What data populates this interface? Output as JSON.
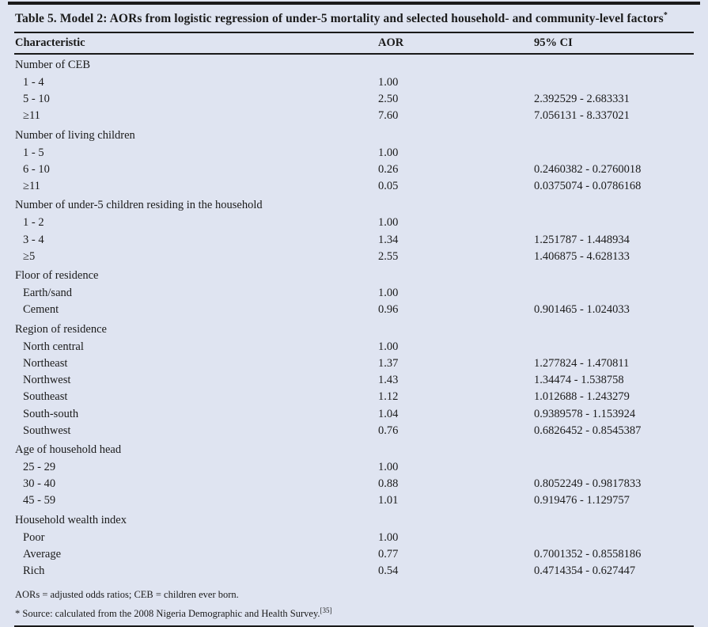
{
  "table": {
    "title": "Table 5. Model 2:  AORs from logistic regression of under-5 mortality and selected household- and community-level factors",
    "title_marker": "*",
    "columns": {
      "characteristic": "Characteristic",
      "aor": "AOR",
      "ci": "95% CI"
    },
    "sections": [
      {
        "header": "Number of CEB",
        "rows": [
          {
            "label": "1 - 4",
            "aor": "1.00",
            "ci": ""
          },
          {
            "label": "5 - 10",
            "aor": "2.50",
            "ci": "2.392529 - 2.683331"
          },
          {
            "label": "≥11",
            "aor": "7.60",
            "ci": "7.056131 - 8.337021"
          }
        ]
      },
      {
        "header": "Number of living children",
        "rows": [
          {
            "label": "1 - 5",
            "aor": "1.00",
            "ci": ""
          },
          {
            "label": "6 - 10",
            "aor": "0.26",
            "ci": "0.2460382 - 0.2760018"
          },
          {
            "label": "≥11",
            "aor": "0.05",
            "ci": "0.0375074 - 0.0786168"
          }
        ]
      },
      {
        "header": "Number of under-5 children residing in the household",
        "rows": [
          {
            "label": "1 - 2",
            "aor": "1.00",
            "ci": ""
          },
          {
            "label": "3 - 4",
            "aor": "1.34",
            "ci": "1.251787 - 1.448934"
          },
          {
            "label": "≥5",
            "aor": "2.55",
            "ci": "1.406875 - 4.628133"
          }
        ]
      },
      {
        "header": "Floor of residence",
        "rows": [
          {
            "label": "Earth/sand",
            "aor": "1.00",
            "ci": ""
          },
          {
            "label": "Cement",
            "aor": "0.96",
            "ci": "0.901465 - 1.024033"
          }
        ]
      },
      {
        "header": "Region of residence",
        "rows": [
          {
            "label": "North central",
            "aor": "1.00",
            "ci": ""
          },
          {
            "label": "Northeast",
            "aor": "1.37",
            "ci": "1.277824 - 1.470811"
          },
          {
            "label": "Northwest",
            "aor": "1.43",
            "ci": "1.34474 - 1.538758"
          },
          {
            "label": "Southeast",
            "aor": "1.12",
            "ci": "1.012688 - 1.243279"
          },
          {
            "label": "South-south",
            "aor": "1.04",
            "ci": "0.9389578 - 1.153924"
          },
          {
            "label": "Southwest",
            "aor": "0.76",
            "ci": "0.6826452 - 0.8545387"
          }
        ]
      },
      {
        "header": "Age of household head",
        "rows": [
          {
            "label": "25 - 29",
            "aor": "1.00",
            "ci": ""
          },
          {
            "label": "30 - 40",
            "aor": "0.88",
            "ci": "0.8052249 - 0.9817833"
          },
          {
            "label": "45 - 59",
            "aor": "1.01",
            "ci": "0.919476 - 1.129757"
          }
        ]
      },
      {
        "header": "Household wealth index",
        "rows": [
          {
            "label": "Poor",
            "aor": "1.00",
            "ci": ""
          },
          {
            "label": "Average",
            "aor": "0.77",
            "ci": "0.7001352 - 0.8558186"
          },
          {
            "label": "Rich",
            "aor": "0.54",
            "ci": "0.4714354 - 0.627447"
          }
        ]
      }
    ],
    "footnotes": {
      "line1": "AORs = adjusted odds ratios; CEB = children ever born.",
      "line2": "* Source: calculated from the 2008 Nigeria Demographic and Health Survey.",
      "line2_ref": "[35]"
    },
    "colors": {
      "background": "#dfe4f1",
      "rule": "#1a1a1a",
      "text": "#1b1b1b"
    }
  }
}
